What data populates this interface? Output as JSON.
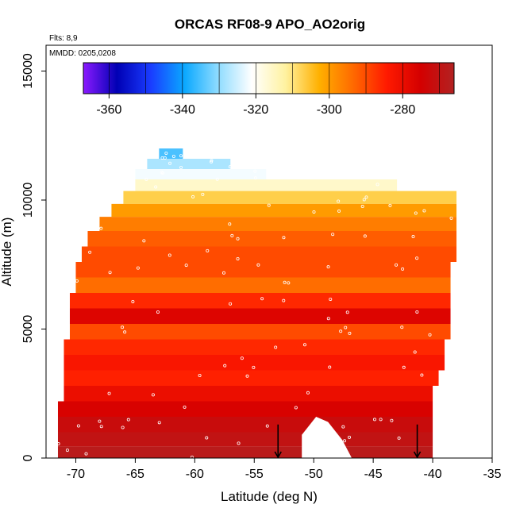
{
  "chart_data": {
    "type": "heatmap",
    "title": "ORCAS RF08-9 APO_AO2orig",
    "flights_note": "Flts: 8,9",
    "date_note": "MMDD: 0205,0208",
    "xlabel": "Latitude (deg N)",
    "ylabel": "Altitude (m)",
    "xlim": [
      -72.5,
      -35
    ],
    "ylim": [
      0,
      16000
    ],
    "x_ticks": [
      -70,
      -65,
      -60,
      -55,
      -50,
      -45,
      -40,
      -35
    ],
    "x_tick_labels": [
      "-70",
      "-65",
      "-60",
      "-55",
      "-50",
      "-45",
      "-40",
      "-35"
    ],
    "y_ticks": [
      0,
      5000,
      10000,
      15000
    ],
    "y_tick_labels": [
      "0",
      "5000",
      "10000",
      "15000"
    ],
    "colorbar": {
      "range": [
        -367,
        -266
      ],
      "ticks": [
        -360,
        -340,
        -320,
        -300,
        -280
      ],
      "tick_labels": [
        "-360",
        "-340",
        "-320",
        "-300",
        "-280"
      ],
      "colors": [
        "#8b1aff",
        "#0000b4",
        "#1a3cff",
        "#0aa8ff",
        "#8fdcff",
        "#ffffff",
        "#fff2a0",
        "#ffb000",
        "#ff6a00",
        "#ff1a00",
        "#d40000",
        "#b22222"
      ]
    },
    "grid": false,
    "arrows_at_latitude": [
      -53,
      -41.3
    ],
    "field_rows": [
      {
        "alt": 11800,
        "lat_min": -63,
        "lat_max": -61,
        "value": -335
      },
      {
        "alt": 11400,
        "lat_min": -64,
        "lat_max": -57,
        "value": -328
      },
      {
        "alt": 11000,
        "lat_min": -65,
        "lat_max": -54,
        "value": -322
      },
      {
        "alt": 10600,
        "lat_min": -65,
        "lat_max": -43,
        "value": -316
      },
      {
        "alt": 10100,
        "lat_min": -66,
        "lat_max": -38,
        "value": -307
      },
      {
        "alt": 9600,
        "lat_min": -67,
        "lat_max": -38,
        "value": -300
      },
      {
        "alt": 9100,
        "lat_min": -68,
        "lat_max": -38,
        "value": -296
      },
      {
        "alt": 8500,
        "lat_min": -69,
        "lat_max": -38,
        "value": -292
      },
      {
        "alt": 7900,
        "lat_min": -69.5,
        "lat_max": -38,
        "value": -290
      },
      {
        "alt": 7300,
        "lat_min": -70,
        "lat_max": -38.5,
        "value": -290
      },
      {
        "alt": 6700,
        "lat_min": -70,
        "lat_max": -38.5,
        "value": -294
      },
      {
        "alt": 6100,
        "lat_min": -70.5,
        "lat_max": -38.5,
        "value": -286
      },
      {
        "alt": 5500,
        "lat_min": -70.5,
        "lat_max": -38.5,
        "value": -277
      },
      {
        "alt": 4900,
        "lat_min": -70.5,
        "lat_max": -38.5,
        "value": -290
      },
      {
        "alt": 4300,
        "lat_min": -71,
        "lat_max": -39,
        "value": -286
      },
      {
        "alt": 3700,
        "lat_min": -71,
        "lat_max": -39,
        "value": -283
      },
      {
        "alt": 3100,
        "lat_min": -71,
        "lat_max": -39.5,
        "value": -285
      },
      {
        "alt": 2500,
        "lat_min": -71,
        "lat_max": -40,
        "value": -280
      },
      {
        "alt": 1900,
        "lat_min": -71.5,
        "lat_max": -40,
        "value": -276
      },
      {
        "alt": 1300,
        "lat_min": -71.5,
        "lat_max": -40,
        "value": -272
      },
      {
        "alt": 700,
        "lat_min": -71.5,
        "lat_max": -40,
        "value": -270
      },
      {
        "alt": 200,
        "lat_min": -71.5,
        "lat_max": -40,
        "value": -268
      }
    ]
  }
}
